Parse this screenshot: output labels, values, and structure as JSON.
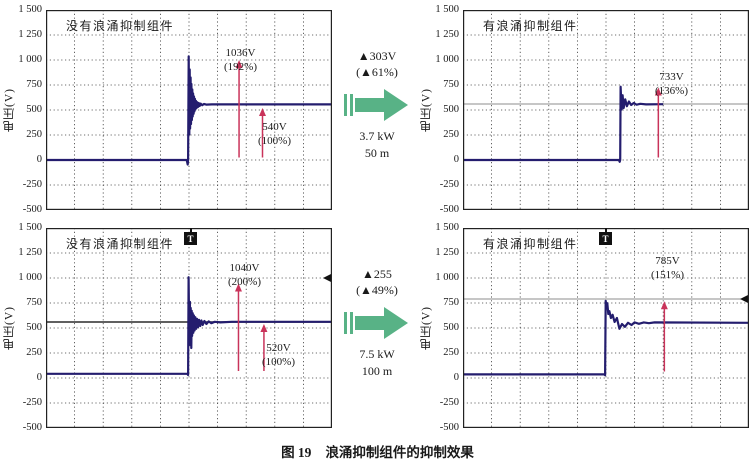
{
  "figure": {
    "caption_label": "图 19",
    "caption_text": "浪涌抑制组件的抑制效果"
  },
  "axis": {
    "ylabel": "电压(V)",
    "yticks": [
      "1 500",
      "1 250",
      "1 000",
      "750",
      "500",
      "250",
      "0",
      "-250",
      "-500"
    ]
  },
  "colors": {
    "waveform": "#241d6e",
    "grid": "#3c3c3c",
    "measure_arrow": "#c9335a",
    "transition_arrow": "#58b286",
    "cursor_gray": "#8d8d8d",
    "text": "#1a1a1a"
  },
  "charts": [
    {
      "position": "top-left",
      "title": "没有浪涌抑制组件",
      "annotations": [
        {
          "value": "1036V",
          "percent": "(192%)"
        },
        {
          "value": "540V",
          "percent": "(100%)"
        }
      ]
    },
    {
      "position": "top-right",
      "title": "有浪涌抑制组件",
      "annotations": [
        {
          "value": "733V",
          "percent": "(136%)"
        }
      ]
    },
    {
      "position": "bottom-left",
      "title": "没有浪涌抑制组件",
      "trigger_label": "T",
      "annotations": [
        {
          "value": "1040V",
          "percent": "(200%)"
        },
        {
          "value": "520V",
          "percent": "(100%)"
        }
      ]
    },
    {
      "position": "bottom-right",
      "title": "有浪涌抑制组件",
      "trigger_label": "T",
      "annotations": [
        {
          "value": "785V",
          "percent": "(151%)"
        }
      ]
    }
  ],
  "transitions": [
    {
      "delta_v": "▲303V",
      "delta_pct": "(▲61%)",
      "power": "3.7 kW",
      "distance": "50 m"
    },
    {
      "delta_v": "▲255",
      "delta_pct": "(▲49%)",
      "power": "7.5 kW",
      "distance": "100 m"
    }
  ],
  "chart_data": [
    {
      "type": "line",
      "title": "没有浪涌抑制组件",
      "ylabel": "电压(V)",
      "ylim": [
        -500,
        1500
      ],
      "xdivisions": 10,
      "grid_v_step": 250,
      "peak_v": 1036,
      "peak_pct": 192,
      "steady_v": 540,
      "steady_pct": 100,
      "points": [
        [
          0,
          0
        ],
        [
          0.492,
          0
        ],
        [
          0.4955,
          -45
        ],
        [
          0.497,
          0
        ],
        [
          0.499,
          1036
        ],
        [
          0.501,
          255
        ],
        [
          0.5025,
          905
        ],
        [
          0.504,
          315
        ],
        [
          0.5055,
          825
        ],
        [
          0.507,
          360
        ],
        [
          0.5085,
          760
        ],
        [
          0.51,
          400
        ],
        [
          0.5115,
          705
        ],
        [
          0.513,
          435
        ],
        [
          0.5145,
          665
        ],
        [
          0.516,
          462
        ],
        [
          0.5175,
          635
        ],
        [
          0.519,
          485
        ],
        [
          0.5205,
          612
        ],
        [
          0.522,
          503
        ],
        [
          0.524,
          592
        ],
        [
          0.526,
          518
        ],
        [
          0.5285,
          578
        ],
        [
          0.531,
          530
        ],
        [
          0.534,
          570
        ],
        [
          0.5375,
          540
        ],
        [
          0.541,
          564
        ],
        [
          0.546,
          548
        ],
        [
          0.552,
          560
        ],
        [
          0.56,
          554
        ],
        [
          0.58,
          556
        ],
        [
          1,
          556
        ]
      ],
      "measure_arrows": [
        {
          "x": 0.675,
          "v_from": 25,
          "v_to": 1000
        },
        {
          "x": 0.757,
          "v_from": 25,
          "v_to": 520
        }
      ],
      "cursor": null,
      "edge_marker_v": null,
      "trigger_x": null
    },
    {
      "type": "line",
      "title": "有浪涌抑制组件",
      "ylabel": "电压(V)",
      "ylim": [
        -500,
        1500
      ],
      "xdivisions": 10,
      "grid_v_step": 250,
      "peak_v": 733,
      "peak_pct": 136,
      "points": [
        [
          0,
          0
        ],
        [
          0.545,
          0
        ],
        [
          0.548,
          -18
        ],
        [
          0.5495,
          0
        ],
        [
          0.551,
          733
        ],
        [
          0.5545,
          505
        ],
        [
          0.558,
          648
        ],
        [
          0.562,
          520
        ],
        [
          0.567,
          607
        ],
        [
          0.573,
          538
        ],
        [
          0.58,
          585
        ],
        [
          0.588,
          550
        ],
        [
          0.597,
          570
        ],
        [
          0.607,
          553
        ],
        [
          0.62,
          562
        ],
        [
          0.64,
          556
        ],
        [
          0.7,
          558
        ]
      ],
      "measure_arrows": [
        {
          "x": 0.683,
          "v_from": 25,
          "v_to": 725
        }
      ],
      "cursor": {
        "v": 560,
        "color": "#8d8d8d",
        "w": 1
      },
      "edge_marker_v": null,
      "trigger_x": null
    },
    {
      "type": "line",
      "title": "没有浪涌抑制组件",
      "ylabel": "电压(V)",
      "ylim": [
        -500,
        1500
      ],
      "xdivisions": 10,
      "grid_v_step": 250,
      "peak_v": 1040,
      "peak_pct": 200,
      "steady_v": 520,
      "steady_pct": 100,
      "points": [
        [
          0,
          42
        ],
        [
          0.494,
          42
        ],
        [
          0.497,
          30
        ],
        [
          0.4985,
          1008
        ],
        [
          0.5,
          640
        ],
        [
          0.5015,
          388
        ],
        [
          0.503,
          762
        ],
        [
          0.5045,
          330
        ],
        [
          0.506,
          700
        ],
        [
          0.508,
          300
        ],
        [
          0.5095,
          672
        ],
        [
          0.511,
          420
        ],
        [
          0.513,
          648
        ],
        [
          0.515,
          452
        ],
        [
          0.517,
          625
        ],
        [
          0.5195,
          475
        ],
        [
          0.522,
          608
        ],
        [
          0.525,
          492
        ],
        [
          0.528,
          592
        ],
        [
          0.5315,
          508
        ],
        [
          0.535,
          582
        ],
        [
          0.539,
          520
        ],
        [
          0.5435,
          575
        ],
        [
          0.548,
          530
        ],
        [
          0.554,
          570
        ],
        [
          0.561,
          540
        ],
        [
          0.569,
          566
        ],
        [
          0.578,
          548
        ],
        [
          0.59,
          562
        ],
        [
          0.61,
          556
        ],
        [
          0.65,
          562
        ],
        [
          1,
          562
        ]
      ],
      "measure_arrows": [
        {
          "x": 0.673,
          "v_from": 70,
          "v_to": 945
        },
        {
          "x": 0.762,
          "v_from": 70,
          "v_to": 540
        }
      ],
      "cursor": {
        "v": 560,
        "color": "#2b2b2b",
        "w": 1.6
      },
      "edge_marker_v": 1000,
      "trigger_x": 0.5
    },
    {
      "type": "line",
      "title": "有浪涌抑制组件",
      "ylabel": "电压(V)",
      "ylim": [
        -500,
        1500
      ],
      "xdivisions": 10,
      "grid_v_step": 250,
      "peak_v": 785,
      "peak_pct": 151,
      "points": [
        [
          0,
          36
        ],
        [
          0.494,
          36
        ],
        [
          0.497,
          28
        ],
        [
          0.499,
          772
        ],
        [
          0.502,
          700
        ],
        [
          0.5045,
          748
        ],
        [
          0.508,
          640
        ],
        [
          0.512,
          668
        ],
        [
          0.517,
          600
        ],
        [
          0.523,
          632
        ],
        [
          0.53,
          560
        ],
        [
          0.538,
          600
        ],
        [
          0.547,
          492
        ],
        [
          0.556,
          540
        ],
        [
          0.566,
          512
        ],
        [
          0.577,
          552
        ],
        [
          0.589,
          530
        ],
        [
          0.6,
          556
        ],
        [
          0.615,
          542
        ],
        [
          0.632,
          556
        ],
        [
          0.65,
          548
        ],
        [
          0.67,
          556
        ],
        [
          1,
          552
        ]
      ],
      "measure_arrows": [
        {
          "x": 0.704,
          "v_from": 65,
          "v_to": 768
        }
      ],
      "cursor": {
        "v": 790,
        "color": "#8d8d8d",
        "w": 1
      },
      "edge_marker_v": 790,
      "trigger_x": 0.5
    }
  ]
}
